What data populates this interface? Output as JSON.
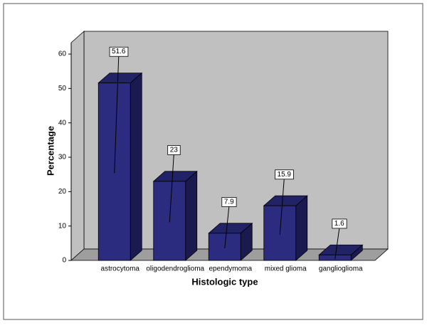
{
  "chart_data": {
    "type": "bar3d",
    "x_label": "Histologic type",
    "y_label": "Percentage",
    "categories": [
      "astrocytoma",
      "oligodendroglioma",
      "ependymoma",
      "mixed glioma",
      "ganglioglioma"
    ],
    "values": [
      51.6,
      23,
      7.9,
      15.9,
      1.6
    ],
    "color": "#2b2b80",
    "ylim": [
      0,
      60
    ],
    "yticks": [
      0,
      10,
      20,
      30,
      40,
      50,
      60
    ]
  }
}
